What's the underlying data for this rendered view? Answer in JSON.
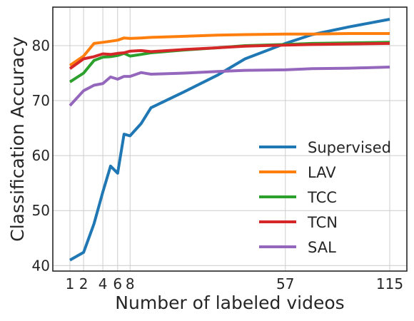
{
  "chart_data": {
    "type": "line",
    "title": "",
    "xlabel": "Number of labeled videos",
    "ylabel": "Classification Accuracy",
    "x_ticks": [
      1,
      2,
      4,
      6,
      8,
      57,
      115
    ],
    "y_ticks": [
      40,
      50,
      60,
      70,
      80
    ],
    "ylim": [
      39,
      87
    ],
    "grid": true,
    "legend_position": "lower-right",
    "x": [
      1,
      2,
      3,
      4,
      5,
      6,
      7,
      8,
      10,
      12,
      20,
      30,
      40,
      57,
      70,
      90,
      115
    ],
    "series": [
      {
        "name": "Supervised",
        "color": "#1f77b4",
        "values": [
          41.0,
          42.4,
          47.6,
          53.4,
          58.1,
          56.8,
          63.9,
          63.6,
          65.8,
          68.7,
          71.6,
          74.6,
          77.6,
          80.4,
          82.0,
          83.4,
          84.8
        ]
      },
      {
        "name": "LAV",
        "color": "#ff7f0e",
        "values": [
          76.4,
          78.1,
          80.4,
          80.6,
          80.8,
          81.0,
          81.4,
          81.3,
          81.4,
          81.5,
          81.7,
          81.9,
          82.0,
          82.1,
          82.1,
          82.2,
          82.2
        ]
      },
      {
        "name": "TCC",
        "color": "#2ca02c",
        "values": [
          73.4,
          75.0,
          77.3,
          77.9,
          78.0,
          78.2,
          78.6,
          78.1,
          78.4,
          78.7,
          79.2,
          79.6,
          80.0,
          80.2,
          80.4,
          80.5,
          80.6
        ]
      },
      {
        "name": "TCN",
        "color": "#d62728",
        "values": [
          75.8,
          77.6,
          78.0,
          78.5,
          78.4,
          78.6,
          78.7,
          79.0,
          79.1,
          78.9,
          79.3,
          79.6,
          79.9,
          80.1,
          80.2,
          80.3,
          80.4
        ]
      },
      {
        "name": "SAL",
        "color": "#9467bd",
        "values": [
          69.1,
          71.8,
          72.8,
          73.1,
          74.3,
          73.9,
          74.4,
          74.4,
          75.1,
          74.8,
          75.0,
          75.3,
          75.5,
          75.6,
          75.8,
          75.9,
          76.1
        ]
      }
    ]
  }
}
